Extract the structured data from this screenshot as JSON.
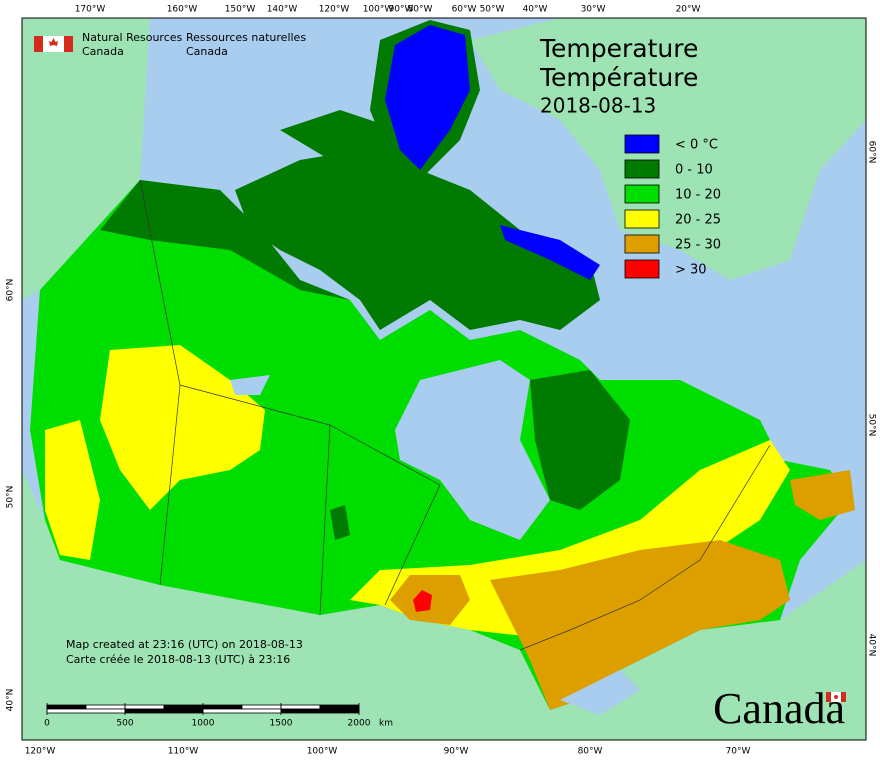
{
  "header": {
    "agency_en": [
      "Natural Resources",
      "Canada"
    ],
    "agency_fr": [
      "Ressources naturelles",
      "Canada"
    ]
  },
  "title": {
    "en": "Temperature",
    "fr": "Température",
    "date": "2018-08-13"
  },
  "legend": [
    {
      "label": "< 0 °C",
      "color": "#0000ff"
    },
    {
      "label": "0 - 10",
      "color": "#007a00"
    },
    {
      "label": "10 - 20",
      "color": "#00dd00"
    },
    {
      "label": "20 - 25",
      "color": "#ffff00"
    },
    {
      "label": "25 - 30",
      "color": "#dd9f00"
    },
    {
      "label": "> 30",
      "color": "#ff0000"
    }
  ],
  "graticule": {
    "top": [
      "170°W",
      "160°W",
      "150°W",
      "140°W",
      "120°W",
      "100°W",
      "90°W",
      "80°W",
      "60°W",
      "50°W",
      "40°W",
      "30°W",
      "20°W"
    ],
    "bottom": [
      "120°W",
      "110°W",
      "100°W",
      "90°W",
      "80°W",
      "70°W"
    ],
    "left": [
      "60°N",
      "50°N",
      "40°N"
    ],
    "right": [
      "60°N",
      "50°N",
      "40°N"
    ]
  },
  "credits": [
    "Map created at 23:16 (UTC) on 2018-08-13",
    "Carte créée le 2018-08-13 (UTC) à 23:16"
  ],
  "scale": {
    "ticks": [
      0,
      500,
      1000,
      1500,
      2000
    ],
    "unit": "km"
  },
  "wordmark": "Canada"
}
